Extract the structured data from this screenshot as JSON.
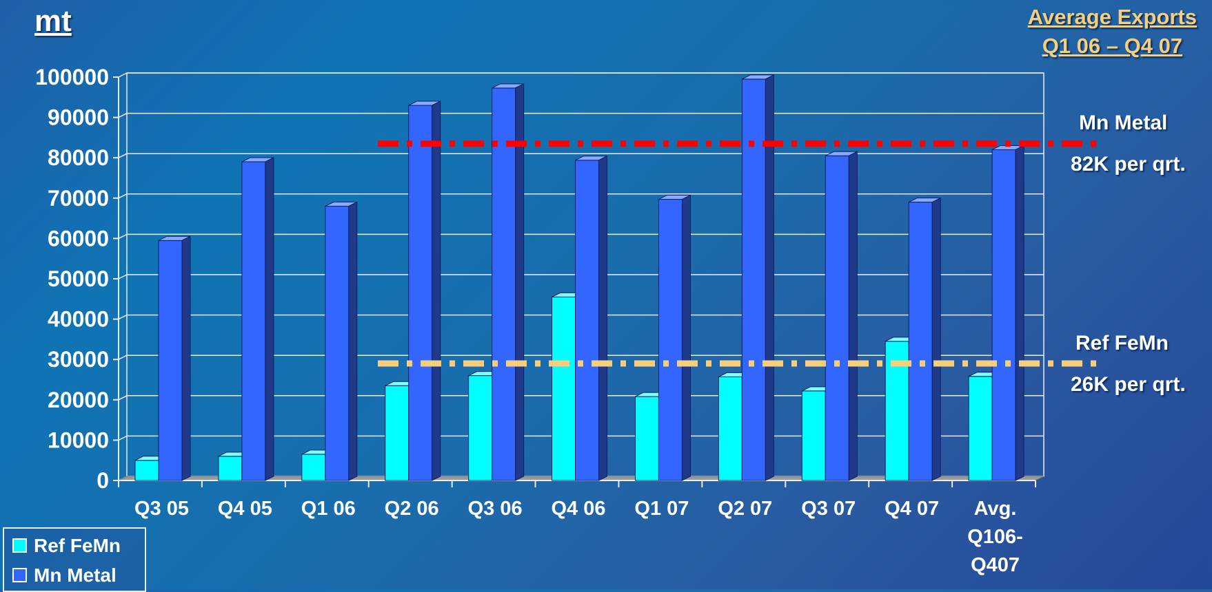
{
  "header": {
    "unit_title": "mt",
    "avg_title_line1": "Average Exports",
    "avg_title_line2": "Q1 06 – Q4 07"
  },
  "annotations": {
    "mn_label": "Mn Metal",
    "mn_value": "82K per qrt.",
    "fe_label": "Ref FeMn",
    "fe_value": "26K per qrt."
  },
  "colors": {
    "ref_femn": "#00ffff",
    "mn_metal": "#3366ff",
    "mn_avg_line": "#ff0000",
    "fe_avg_line": "#f6cf7e"
  },
  "chart_data": {
    "type": "bar",
    "categories": [
      [
        "Q3 05"
      ],
      [
        "Q4 05"
      ],
      [
        "Q1 06"
      ],
      [
        "Q2 06"
      ],
      [
        "Q3 06"
      ],
      [
        "Q4 06"
      ],
      [
        "Q1 07"
      ],
      [
        "Q2 07"
      ],
      [
        "Q3 07"
      ],
      [
        "Q4 07"
      ],
      [
        "Avg.",
        "Q106-",
        "Q407"
      ]
    ],
    "series": [
      {
        "name": "Ref FeMn",
        "values": [
          5000,
          6000,
          6500,
          23500,
          26000,
          45500,
          20800,
          25700,
          22200,
          34500,
          25800
        ]
      },
      {
        "name": "Mn Metal",
        "values": [
          59500,
          79000,
          68000,
          93000,
          97300,
          79400,
          69700,
          99500,
          80500,
          69000,
          82000
        ]
      }
    ],
    "reference_lines": [
      {
        "series": "Mn Metal",
        "value": 83500,
        "style": "dash-dot",
        "color": "#ff0000"
      },
      {
        "series": "Ref FeMn",
        "value": 29000,
        "style": "dash-dot",
        "color": "#f6cf7e"
      }
    ],
    "yticks": [
      0,
      10000,
      20000,
      30000,
      40000,
      50000,
      60000,
      70000,
      80000,
      90000,
      100000
    ],
    "ylim": [
      0,
      100000
    ],
    "grid": true,
    "legend_position": "bottom-left"
  }
}
